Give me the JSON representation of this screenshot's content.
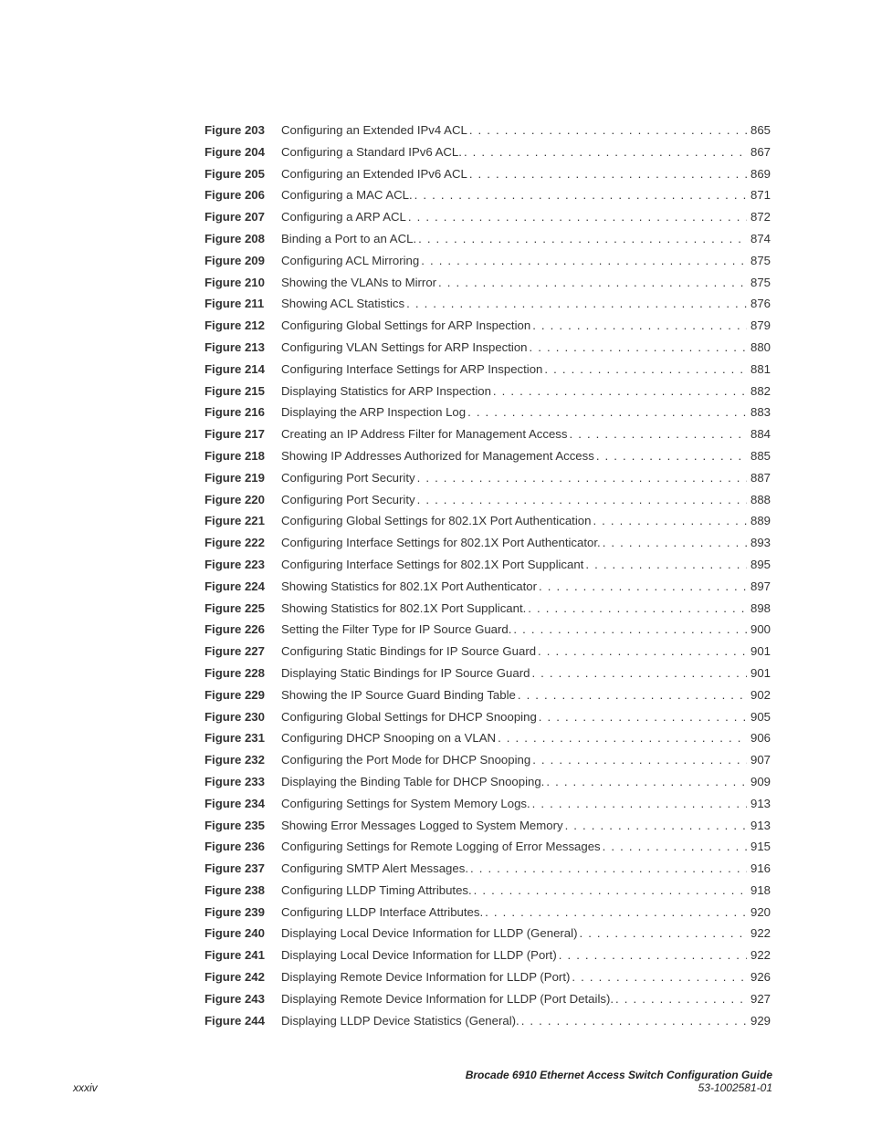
{
  "entries": [
    {
      "label": "Figure 203",
      "title": "Configuring an Extended IPv4 ACL",
      "page": "865"
    },
    {
      "label": "Figure 204",
      "title": "Configuring a Standard IPv6 ACL.",
      "page": "867"
    },
    {
      "label": "Figure 205",
      "title": "Configuring an Extended IPv6 ACL",
      "page": "869"
    },
    {
      "label": "Figure 206",
      "title": "Configuring a MAC ACL.",
      "page": "871"
    },
    {
      "label": "Figure 207",
      "title": "Configuring a ARP ACL",
      "page": "872"
    },
    {
      "label": "Figure 208",
      "title": "Binding a Port to an ACL.",
      "page": "874"
    },
    {
      "label": "Figure 209",
      "title": "Configuring ACL Mirroring",
      "page": "875"
    },
    {
      "label": "Figure 210",
      "title": "Showing the VLANs to Mirror",
      "page": "875"
    },
    {
      "label": "Figure 211",
      "title": "Showing ACL Statistics",
      "page": "876"
    },
    {
      "label": "Figure 212",
      "title": "Configuring Global Settings for ARP Inspection",
      "page": "879"
    },
    {
      "label": "Figure 213",
      "title": "Configuring VLAN Settings for ARP Inspection",
      "page": "880"
    },
    {
      "label": "Figure 214",
      "title": "Configuring Interface Settings for ARP Inspection",
      "page": "881"
    },
    {
      "label": "Figure 215",
      "title": "Displaying Statistics for ARP Inspection",
      "page": "882"
    },
    {
      "label": "Figure 216",
      "title": "Displaying the ARP Inspection Log",
      "page": "883"
    },
    {
      "label": "Figure 217",
      "title": "Creating an IP Address Filter for Management Access",
      "page": "884"
    },
    {
      "label": "Figure 218",
      "title": "Showing IP Addresses Authorized for Management Access",
      "page": "885"
    },
    {
      "label": "Figure 219",
      "title": "Configuring Port Security",
      "page": "887"
    },
    {
      "label": "Figure 220",
      "title": "Configuring Port Security",
      "page": "888"
    },
    {
      "label": "Figure 221",
      "title": "Configuring Global Settings for 802.1X Port Authentication",
      "page": "889"
    },
    {
      "label": "Figure 222",
      "title": "Configuring Interface Settings for 802.1X Port Authenticator.",
      "page": "893"
    },
    {
      "label": "Figure 223",
      "title": "Configuring Interface Settings for 802.1X Port Supplicant",
      "page": "895"
    },
    {
      "label": "Figure 224",
      "title": "Showing Statistics for 802.1X Port Authenticator",
      "page": "897"
    },
    {
      "label": "Figure 225",
      "title": "Showing Statistics for 802.1X Port Supplicant.",
      "page": "898"
    },
    {
      "label": "Figure 226",
      "title": "Setting the Filter Type for IP Source Guard.",
      "page": "900"
    },
    {
      "label": "Figure 227",
      "title": "Configuring Static Bindings for IP Source Guard",
      "page": "901"
    },
    {
      "label": "Figure 228",
      "title": "Displaying Static Bindings for IP Source Guard",
      "page": "901"
    },
    {
      "label": "Figure 229",
      "title": "Showing the IP Source Guard Binding Table",
      "page": "902"
    },
    {
      "label": "Figure 230",
      "title": "Configuring Global Settings for DHCP Snooping",
      "page": "905"
    },
    {
      "label": "Figure 231",
      "title": "Configuring DHCP Snooping on a VLAN",
      "page": "906"
    },
    {
      "label": "Figure 232",
      "title": "Configuring the Port Mode for DHCP Snooping",
      "page": "907"
    },
    {
      "label": "Figure 233",
      "title": "Displaying the Binding Table for DHCP Snooping.",
      "page": "909"
    },
    {
      "label": "Figure 234",
      "title": "Configuring Settings for System Memory Logs.",
      "page": "913"
    },
    {
      "label": "Figure 235",
      "title": "Showing Error Messages Logged to System Memory",
      "page": "913"
    },
    {
      "label": "Figure 236",
      "title": "Configuring Settings for Remote Logging of Error Messages",
      "page": "915"
    },
    {
      "label": "Figure 237",
      "title": "Configuring SMTP Alert Messages.",
      "page": "916"
    },
    {
      "label": "Figure 238",
      "title": "Configuring LLDP Timing Attributes.",
      "page": "918"
    },
    {
      "label": "Figure 239",
      "title": "Configuring LLDP Interface Attributes.",
      "page": "920"
    },
    {
      "label": "Figure 240",
      "title": "Displaying Local Device Information for LLDP (General)",
      "page": "922"
    },
    {
      "label": "Figure 241",
      "title": "Displaying Local Device Information for LLDP (Port)",
      "page": "922"
    },
    {
      "label": "Figure 242",
      "title": "Displaying Remote Device Information for LLDP (Port)",
      "page": "926"
    },
    {
      "label": "Figure 243",
      "title": "Displaying Remote Device Information for LLDP (Port Details).",
      "page": "927"
    },
    {
      "label": "Figure 244",
      "title": "Displaying LLDP Device Statistics (General).",
      "page": "929"
    }
  ],
  "footer": {
    "page_number": "xxxiv",
    "doc_title": "Brocade 6910 Ethernet Access Switch Configuration Guide",
    "doc_number": "53-1002581-01"
  }
}
